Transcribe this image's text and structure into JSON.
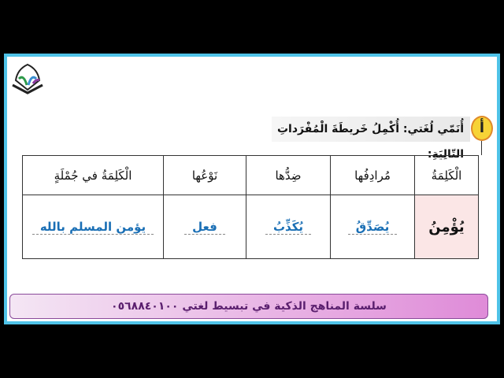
{
  "instruction": {
    "badge": "أ",
    "text": "أُنَمّي لُغَتي: أُكْمِلُ خَريطَةَ الْمُفْرَداتِ التّالِيَةِ:"
  },
  "table": {
    "headers": [
      "الْكَلِمَةُ",
      "مُرادِفُها",
      "ضِدُّها",
      "نَوْعُها",
      "الْكَلِمَةُ في جُمْلَةٍ"
    ],
    "row": [
      "يُؤْمِنُ",
      "يُصَدِّقُ",
      "يُكَذِّبُ",
      "فعل",
      "يؤمن المسلم بالله"
    ]
  },
  "footer": {
    "text": "سلسة المناهج الذكية في تبسيط لغتي ٠٥٦٨٨٤٠١٠٠"
  },
  "colors": {
    "frame": "#4fc3e8",
    "answer": "#1a6fb5",
    "footer_end": "#df8bd8",
    "badge": "#f7d336"
  }
}
